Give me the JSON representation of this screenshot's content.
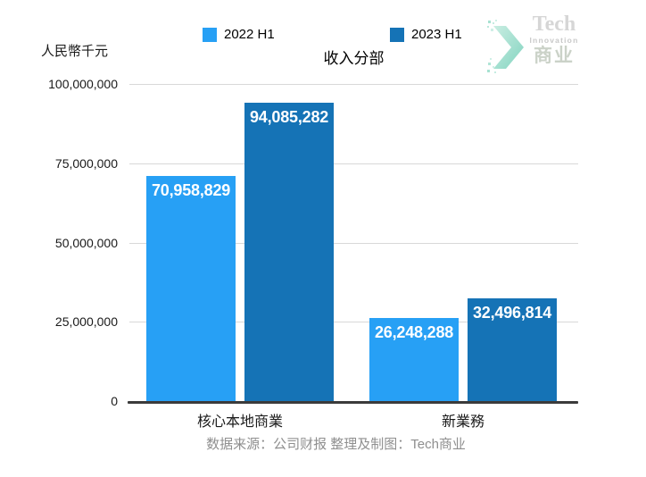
{
  "header": {
    "unit_label": "人民幣千元",
    "title": "收入分部"
  },
  "logo": {
    "line1": "Tech",
    "line2": "Innovation",
    "line3": "商业",
    "chevron_color_light": "#c9ede2",
    "chevron_color_dark": "#83d4c0"
  },
  "chart_data": {
    "type": "bar",
    "title": "收入分部",
    "ylabel": "人民幣千元",
    "categories": [
      "核心本地商業",
      "新業務"
    ],
    "series": [
      {
        "name": "2022 H1",
        "color": "#27A0F5",
        "values": [
          70958829,
          26248288
        ]
      },
      {
        "name": "2023 H1",
        "color": "#1573B6",
        "values": [
          94085282,
          32496814
        ]
      }
    ],
    "ylim": [
      0,
      100000000
    ],
    "yticks": [
      0,
      25000000,
      50000000,
      75000000,
      100000000
    ],
    "grid": true,
    "legend_position": "top",
    "bar_label_color": "#ffffff",
    "gridline_color": "#d8d8d8",
    "axis_color": "#3b3b3b"
  },
  "footer": {
    "source_text": "数据来源：公司财报 整理及制图：Tech商业"
  }
}
